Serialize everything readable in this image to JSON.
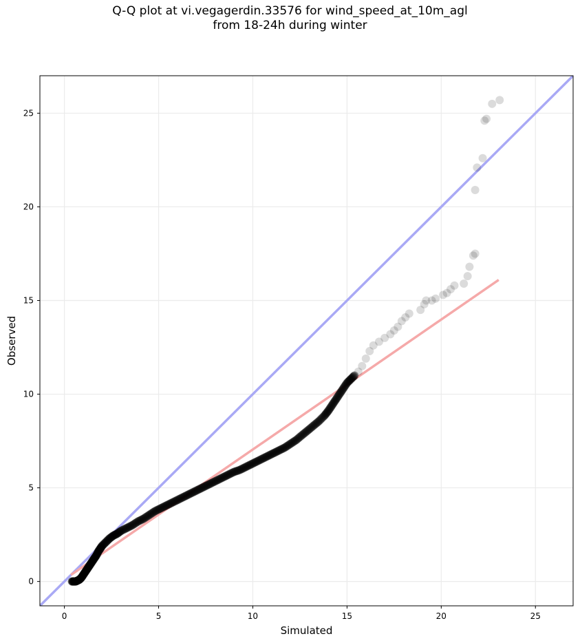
{
  "chart_data": {
    "type": "scatter",
    "title_lines": [
      "Q-Q plot at vi.vegagerdin.33576 for wind_speed_at_10m_agl",
      "from 18-24h during winter"
    ],
    "xlabel": "Simulated",
    "ylabel": "Observed",
    "xlim": [
      -1.3,
      27
    ],
    "ylim": [
      -1.3,
      27
    ],
    "xticks": [
      0,
      5,
      10,
      15,
      20,
      25
    ],
    "yticks": [
      0,
      5,
      10,
      15,
      20,
      25
    ],
    "grid": true,
    "identity_line": {
      "name": "1:1",
      "color": "#a9a9f5"
    },
    "fit_line": {
      "color": "#f5a9a9",
      "x": [
        0.35,
        23.05
      ],
      "y": [
        0.35,
        16.1
      ]
    },
    "point_color": "#000000",
    "series": [
      {
        "values": [
          [
            0.4,
            0.0
          ],
          [
            0.5,
            0.0
          ],
          [
            0.6,
            0.0
          ],
          [
            0.7,
            0.05
          ],
          [
            0.8,
            0.1
          ],
          [
            0.9,
            0.2
          ],
          [
            1.0,
            0.35
          ],
          [
            1.1,
            0.5
          ],
          [
            1.2,
            0.65
          ],
          [
            1.3,
            0.8
          ],
          [
            1.4,
            0.95
          ],
          [
            1.5,
            1.1
          ],
          [
            1.6,
            1.25
          ],
          [
            1.7,
            1.4
          ],
          [
            1.8,
            1.6
          ],
          [
            1.9,
            1.75
          ],
          [
            2.0,
            1.9
          ],
          [
            2.2,
            2.1
          ],
          [
            2.4,
            2.3
          ],
          [
            2.6,
            2.45
          ],
          [
            2.8,
            2.55
          ],
          [
            3.0,
            2.7
          ],
          [
            3.3,
            2.85
          ],
          [
            3.6,
            3.0
          ],
          [
            3.9,
            3.2
          ],
          [
            4.2,
            3.35
          ],
          [
            4.5,
            3.55
          ],
          [
            4.8,
            3.75
          ],
          [
            5.1,
            3.9
          ],
          [
            5.4,
            4.05
          ],
          [
            5.7,
            4.2
          ],
          [
            6.0,
            4.35
          ],
          [
            6.3,
            4.5
          ],
          [
            6.6,
            4.65
          ],
          [
            6.9,
            4.8
          ],
          [
            7.2,
            4.95
          ],
          [
            7.5,
            5.1
          ],
          [
            7.8,
            5.25
          ],
          [
            8.1,
            5.4
          ],
          [
            8.4,
            5.55
          ],
          [
            8.7,
            5.7
          ],
          [
            9.0,
            5.85
          ],
          [
            9.3,
            5.95
          ],
          [
            9.6,
            6.1
          ],
          [
            9.9,
            6.25
          ],
          [
            10.2,
            6.4
          ],
          [
            10.5,
            6.55
          ],
          [
            10.8,
            6.7
          ],
          [
            11.1,
            6.85
          ],
          [
            11.4,
            7.0
          ],
          [
            11.7,
            7.15
          ],
          [
            12.0,
            7.35
          ],
          [
            12.3,
            7.55
          ],
          [
            12.6,
            7.8
          ],
          [
            12.9,
            8.05
          ],
          [
            13.2,
            8.3
          ],
          [
            13.5,
            8.55
          ],
          [
            13.8,
            8.85
          ],
          [
            14.0,
            9.1
          ],
          [
            14.2,
            9.4
          ],
          [
            14.4,
            9.7
          ],
          [
            14.6,
            10.0
          ],
          [
            14.8,
            10.3
          ],
          [
            15.0,
            10.6
          ],
          [
            15.2,
            10.8
          ],
          [
            15.4,
            11.0
          ],
          [
            15.6,
            11.2
          ],
          [
            15.8,
            11.5
          ],
          [
            16.0,
            11.9
          ],
          [
            16.2,
            12.3
          ],
          [
            16.4,
            12.6
          ],
          [
            16.7,
            12.8
          ],
          [
            17.0,
            13.0
          ],
          [
            17.3,
            13.2
          ],
          [
            17.5,
            13.4
          ],
          [
            17.7,
            13.6
          ],
          [
            17.9,
            13.9
          ],
          [
            18.1,
            14.1
          ],
          [
            18.3,
            14.3
          ],
          [
            18.9,
            14.5
          ],
          [
            19.1,
            14.8
          ],
          [
            19.2,
            15.0
          ],
          [
            19.5,
            15.0
          ],
          [
            19.7,
            15.1
          ],
          [
            20.1,
            15.3
          ],
          [
            20.3,
            15.4
          ],
          [
            20.5,
            15.6
          ],
          [
            20.7,
            15.8
          ],
          [
            21.2,
            15.9
          ],
          [
            21.4,
            16.3
          ],
          [
            21.5,
            16.8
          ],
          [
            21.7,
            17.4
          ],
          [
            21.8,
            17.5
          ],
          [
            21.8,
            20.9
          ],
          [
            21.9,
            22.1
          ],
          [
            22.2,
            22.6
          ],
          [
            22.3,
            24.6
          ],
          [
            22.4,
            24.7
          ],
          [
            22.7,
            25.5
          ],
          [
            23.1,
            25.7
          ]
        ]
      }
    ]
  }
}
